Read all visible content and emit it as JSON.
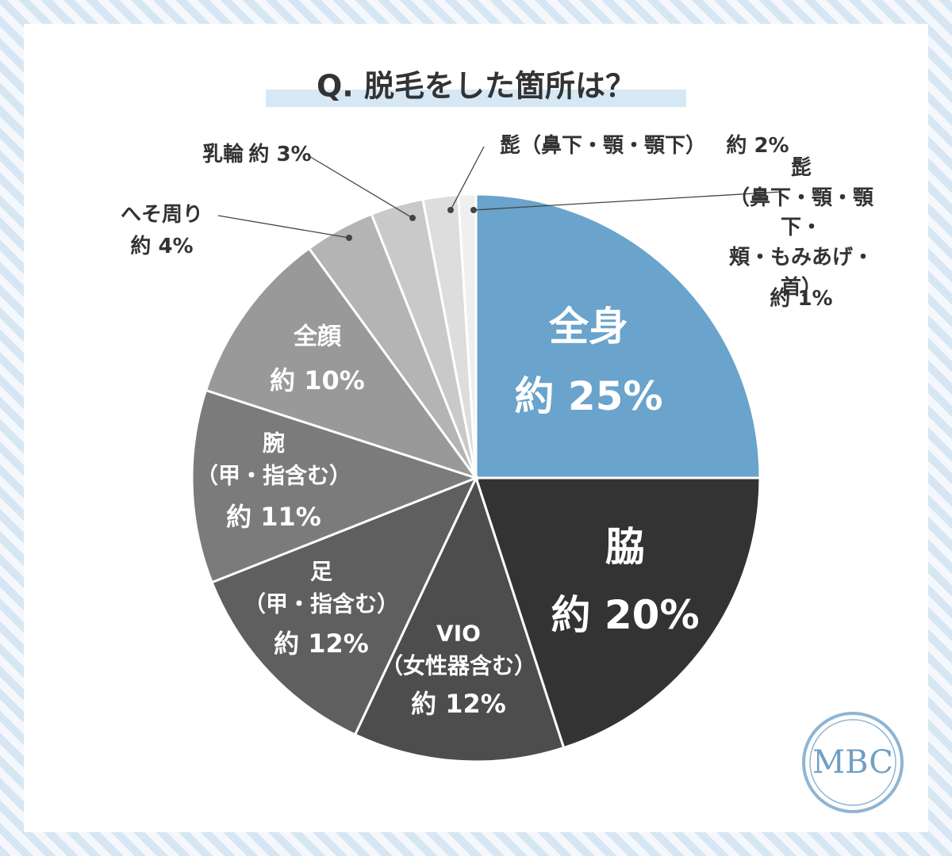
{
  "chart_data": {
    "type": "pie",
    "title": "Q. 脱毛をした箇所は？",
    "categories": [
      "全身",
      "脇",
      "VIO\n（女性器含む）",
      "足\n（甲・指含む）",
      "腕\n（甲・指含む）",
      "全顔",
      "へそ周り",
      "乳輪",
      "髭（鼻下・顎・顎下）",
      "髭\n（鼻下・顎・顎下・\n頬・もみあげ・首）"
    ],
    "values": [
      25,
      20,
      12,
      12,
      11,
      10,
      4,
      3,
      2,
      1
    ],
    "value_labels": [
      "約 25%",
      "約 20%",
      "約 12%",
      "約 12%",
      "約 11%",
      "約 10%",
      "約 4%",
      "約 3%",
      "約 2%",
      "約 1%"
    ],
    "colors": [
      "#6aa3cb",
      "#333333",
      "#4d4d4d",
      "#5f5f5f",
      "#7b7b7b",
      "#999999",
      "#b4b4b4",
      "#c9c9c9",
      "#dddddd",
      "#efefef"
    ]
  },
  "logo": "MBC"
}
